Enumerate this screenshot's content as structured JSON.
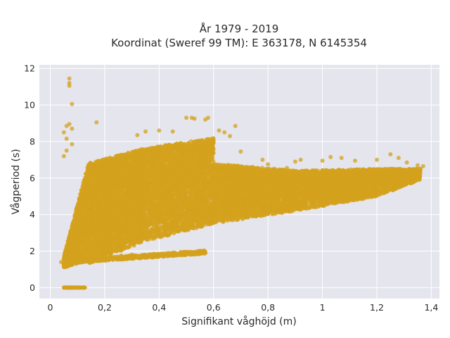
{
  "chart_data": {
    "type": "scatter",
    "title_lines": [
      "År 1979 - 2019",
      "Koordinat (Sweref 99 TM): E 363178, N 6145354"
    ],
    "xlabel": "Signifikant våghöjd (m)",
    "ylabel": "Vågperiod (s)",
    "xlim": [
      -0.04,
      1.43
    ],
    "ylim": [
      -0.6,
      12.2
    ],
    "x_ticks": [
      0,
      0.2,
      0.4,
      0.6,
      0.8,
      1,
      1.2,
      1.4
    ],
    "x_tick_labels": [
      "0",
      "0,2",
      "0,4",
      "0,6",
      "0,8",
      "1",
      "1,2",
      "1,4"
    ],
    "y_ticks": [
      0,
      2,
      4,
      6,
      8,
      10,
      12
    ],
    "y_tick_labels": [
      "0",
      "2",
      "4",
      "6",
      "8",
      "10",
      "12"
    ],
    "grid": true,
    "background": "#e5e5ee",
    "marker_color": "#d4a21e",
    "points": [
      [
        0.07,
        11.45
      ],
      [
        0.07,
        11.2
      ],
      [
        0.07,
        11.05
      ],
      [
        0.08,
        10.05
      ],
      [
        0.07,
        8.95
      ],
      [
        0.06,
        8.85
      ],
      [
        0.08,
        8.7
      ],
      [
        0.05,
        8.5
      ],
      [
        0.06,
        8.15
      ],
      [
        0.08,
        7.85
      ],
      [
        0.06,
        7.5
      ],
      [
        0.05,
        7.2
      ],
      [
        0.17,
        9.05
      ],
      [
        0.32,
        8.35
      ],
      [
        0.35,
        8.55
      ],
      [
        0.4,
        8.6
      ],
      [
        0.45,
        8.55
      ],
      [
        0.5,
        9.3
      ],
      [
        0.52,
        9.3
      ],
      [
        0.53,
        9.25
      ],
      [
        0.57,
        9.2
      ],
      [
        0.58,
        9.3
      ],
      [
        0.62,
        8.6
      ],
      [
        0.64,
        8.5
      ],
      [
        0.68,
        8.85
      ],
      [
        0.66,
        8.3
      ],
      [
        0.6,
        8.05
      ],
      [
        0.7,
        7.45
      ],
      [
        0.78,
        7.0
      ],
      [
        0.8,
        6.75
      ],
      [
        0.87,
        6.55
      ],
      [
        0.9,
        6.9
      ],
      [
        0.92,
        7.0
      ],
      [
        1.0,
        6.95
      ],
      [
        1.03,
        7.15
      ],
      [
        1.07,
        7.1
      ],
      [
        1.12,
        6.95
      ],
      [
        1.2,
        7.0
      ],
      [
        1.25,
        7.3
      ],
      [
        1.28,
        7.1
      ],
      [
        1.31,
        6.85
      ],
      [
        1.35,
        6.7
      ],
      [
        1.37,
        6.65
      ],
      [
        0.15,
        1.65
      ],
      [
        0.2,
        1.7
      ],
      [
        0.26,
        1.75
      ],
      [
        0.3,
        1.8
      ],
      [
        0.38,
        1.85
      ],
      [
        0.44,
        1.8
      ],
      [
        0.5,
        1.9
      ],
      [
        0.53,
        1.92
      ],
      [
        0.55,
        1.95
      ],
      [
        0.57,
        1.9
      ],
      [
        0.08,
        2.3
      ],
      [
        0.1,
        2.7
      ],
      [
        0.05,
        1.6
      ],
      [
        0.04,
        1.4
      ],
      [
        0.05,
        1.25
      ],
      [
        0.06,
        1.15
      ]
    ],
    "clouds": [
      {
        "x": [
          0.05,
          0.14
        ],
        "y_low": [
          1.1,
          1.5
        ],
        "y_high": [
          1.7,
          6.8
        ],
        "n": 1200
      },
      {
        "x": [
          0.14,
          0.34
        ],
        "y_low": [
          1.3,
          2.5
        ],
        "y_high": [
          6.8,
          7.6
        ],
        "n": 3200
      },
      {
        "x": [
          0.34,
          0.6
        ],
        "y_low": [
          2.5,
          3.5
        ],
        "y_high": [
          7.6,
          8.2
        ],
        "n": 3200
      },
      {
        "x": [
          0.6,
          0.9
        ],
        "y_low": [
          3.5,
          4.2
        ],
        "y_high": [
          6.8,
          6.4
        ],
        "n": 2600
      },
      {
        "x": [
          0.9,
          1.2
        ],
        "y_low": [
          4.2,
          5.0
        ],
        "y_high": [
          6.4,
          6.5
        ],
        "n": 2000
      },
      {
        "x": [
          1.2,
          1.36
        ],
        "y_low": [
          5.0,
          5.9
        ],
        "y_high": [
          6.5,
          6.5
        ],
        "n": 800
      }
    ],
    "low_band": {
      "x": [
        0.05,
        0.57
      ],
      "y": [
        1.4,
        1.95
      ],
      "n": 500
    },
    "zero_row": {
      "x": [
        0.05,
        0.13
      ],
      "y": 0,
      "n": 60
    }
  }
}
